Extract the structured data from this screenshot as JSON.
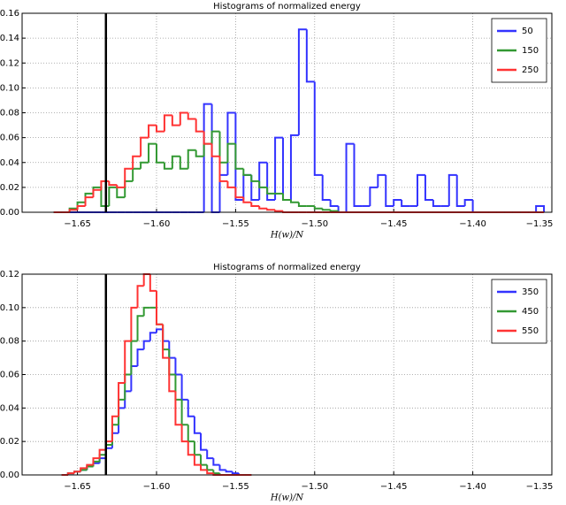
{
  "chart_data": [
    {
      "type": "histogram",
      "title": "Histograms of normalized energy",
      "x_label": "H(w)/N",
      "xlim": [
        -1.685,
        -1.35
      ],
      "ylim": [
        0,
        0.16
      ],
      "xticks": [
        {
          "value": -1.65,
          "label": "−1.65"
        },
        {
          "value": -1.6,
          "label": "−1.60"
        },
        {
          "value": -1.55,
          "label": "−1.55"
        },
        {
          "value": -1.5,
          "label": "−1.50"
        },
        {
          "value": -1.45,
          "label": "−1.45"
        },
        {
          "value": -1.4,
          "label": "−1.40"
        },
        {
          "value": -1.35,
          "label": "−1.35"
        }
      ],
      "yticks": [
        {
          "value": 0,
          "label": "0.00"
        },
        {
          "value": 0.02,
          "label": "0.02"
        },
        {
          "value": 0.04,
          "label": "0.04"
        },
        {
          "value": 0.06,
          "label": "0.06"
        },
        {
          "value": 0.08,
          "label": "0.08"
        },
        {
          "value": 0.1,
          "label": "0.10"
        },
        {
          "value": 0.12,
          "label": "0.12"
        },
        {
          "value": 0.14,
          "label": "0.14"
        },
        {
          "value": 0.16,
          "label": "0.16"
        }
      ],
      "grid": true,
      "legend": "upper right",
      "vline": -1.632,
      "vline_color": "#000000",
      "bins": [
        -1.665,
        -1.66,
        -1.655,
        -1.65,
        -1.645,
        -1.64,
        -1.635,
        -1.63,
        -1.625,
        -1.62,
        -1.615,
        -1.61,
        -1.605,
        -1.6,
        -1.595,
        -1.59,
        -1.585,
        -1.58,
        -1.575,
        -1.57,
        -1.565,
        -1.56,
        -1.555,
        -1.55,
        -1.545,
        -1.54,
        -1.535,
        -1.53,
        -1.525,
        -1.52,
        -1.515,
        -1.51,
        -1.505,
        -1.5,
        -1.495,
        -1.49,
        -1.485,
        -1.48,
        -1.475,
        -1.47,
        -1.465,
        -1.46,
        -1.455,
        -1.45,
        -1.445,
        -1.44,
        -1.435,
        -1.43,
        -1.425,
        -1.42,
        -1.415,
        -1.41,
        -1.405,
        -1.4,
        -1.395,
        -1.39,
        -1.385,
        -1.38,
        -1.375,
        -1.37,
        -1.365,
        -1.36,
        -1.355
      ],
      "series": [
        {
          "name": "50",
          "color": "#3333ff",
          "values": [
            0,
            0,
            0,
            0,
            0,
            0,
            0,
            0,
            0,
            0,
            0,
            0,
            0,
            0,
            0,
            0,
            0,
            0,
            0,
            0.087,
            0,
            0.03,
            0.08,
            0.01,
            0.03,
            0.01,
            0.04,
            0.01,
            0.06,
            0.01,
            0.062,
            0.147,
            0.105,
            0.03,
            0.01,
            0.005,
            0,
            0.055,
            0.005,
            0.005,
            0.02,
            0.03,
            0.005,
            0.01,
            0.005,
            0.005,
            0.03,
            0.01,
            0.005,
            0.005,
            0.03,
            0.005,
            0.01,
            0,
            0,
            0,
            0,
            0,
            0,
            0,
            0,
            0.005
          ]
        },
        {
          "name": "150",
          "color": "#339933",
          "values": [
            0,
            0,
            0.003,
            0.008,
            0.015,
            0.02,
            0.005,
            0.02,
            0.012,
            0.025,
            0.035,
            0.04,
            0.055,
            0.04,
            0.035,
            0.045,
            0.035,
            0.05,
            0.045,
            0.055,
            0.065,
            0.04,
            0.055,
            0.035,
            0.03,
            0.025,
            0.02,
            0.015,
            0.015,
            0.01,
            0.008,
            0.005,
            0.005,
            0.003,
            0.002,
            0.001,
            0,
            0,
            0,
            0,
            0,
            0,
            0,
            0,
            0,
            0,
            0,
            0,
            0,
            0,
            0,
            0,
            0,
            0,
            0,
            0,
            0,
            0,
            0,
            0,
            0,
            0
          ]
        },
        {
          "name": "250",
          "color": "#ff3333",
          "values": [
            0,
            0,
            0.002,
            0.005,
            0.012,
            0.018,
            0.025,
            0.022,
            0.02,
            0.035,
            0.045,
            0.06,
            0.07,
            0.065,
            0.078,
            0.07,
            0.08,
            0.075,
            0.065,
            0.055,
            0.045,
            0.025,
            0.02,
            0.012,
            0.008,
            0.005,
            0.003,
            0.002,
            0.001,
            0,
            0,
            0,
            0,
            0,
            0,
            0,
            0,
            0,
            0,
            0,
            0,
            0,
            0,
            0,
            0,
            0,
            0,
            0,
            0,
            0,
            0,
            0,
            0,
            0,
            0,
            0,
            0,
            0,
            0,
            0,
            0,
            0
          ]
        }
      ]
    },
    {
      "type": "histogram",
      "title": "Histograms of normalized energy",
      "x_label": "H(w)/N",
      "xlim": [
        -1.685,
        -1.35
      ],
      "ylim": [
        0,
        0.12
      ],
      "xticks": [
        {
          "value": -1.65,
          "label": "−1.65"
        },
        {
          "value": -1.6,
          "label": "−1.60"
        },
        {
          "value": -1.55,
          "label": "−1.55"
        },
        {
          "value": -1.5,
          "label": "−1.50"
        },
        {
          "value": -1.45,
          "label": "−1.45"
        },
        {
          "value": -1.4,
          "label": "−1.40"
        },
        {
          "value": -1.35,
          "label": "−1.35"
        }
      ],
      "yticks": [
        {
          "value": 0,
          "label": "0.00"
        },
        {
          "value": 0.02,
          "label": "0.02"
        },
        {
          "value": 0.04,
          "label": "0.04"
        },
        {
          "value": 0.06,
          "label": "0.06"
        },
        {
          "value": 0.08,
          "label": "0.08"
        },
        {
          "value": 0.1,
          "label": "0.10"
        },
        {
          "value": 0.12,
          "label": "0.12"
        }
      ],
      "grid": true,
      "legend": "upper right",
      "vline": -1.632,
      "vline_color": "#000000",
      "bins": [
        -1.66,
        -1.656,
        -1.652,
        -1.648,
        -1.644,
        -1.64,
        -1.636,
        -1.632,
        -1.628,
        -1.624,
        -1.62,
        -1.616,
        -1.612,
        -1.608,
        -1.604,
        -1.6,
        -1.596,
        -1.592,
        -1.588,
        -1.584,
        -1.58,
        -1.576,
        -1.572,
        -1.568,
        -1.564,
        -1.56,
        -1.556,
        -1.552,
        -1.548,
        -1.544,
        -1.54
      ],
      "series": [
        {
          "name": "350",
          "color": "#3333ff",
          "values": [
            0,
            0.001,
            0.002,
            0.003,
            0.005,
            0.007,
            0.01,
            0.016,
            0.025,
            0.04,
            0.05,
            0.065,
            0.075,
            0.08,
            0.085,
            0.087,
            0.08,
            0.07,
            0.06,
            0.045,
            0.035,
            0.025,
            0.015,
            0.01,
            0.006,
            0.003,
            0.002,
            0.001,
            0,
            0
          ]
        },
        {
          "name": "450",
          "color": "#339933",
          "values": [
            0,
            0.001,
            0.002,
            0.003,
            0.005,
            0.008,
            0.012,
            0.018,
            0.03,
            0.045,
            0.06,
            0.08,
            0.095,
            0.1,
            0.1,
            0.09,
            0.075,
            0.06,
            0.045,
            0.03,
            0.02,
            0.012,
            0.006,
            0.003,
            0.001,
            0,
            0,
            0,
            0,
            0
          ]
        },
        {
          "name": "550",
          "color": "#ff3333",
          "values": [
            0,
            0.001,
            0.002,
            0.004,
            0.006,
            0.01,
            0.015,
            0.02,
            0.035,
            0.055,
            0.08,
            0.1,
            0.113,
            0.12,
            0.11,
            0.09,
            0.07,
            0.05,
            0.03,
            0.02,
            0.012,
            0.006,
            0.003,
            0.001,
            0,
            0,
            0,
            0,
            0,
            0
          ]
        }
      ]
    }
  ]
}
